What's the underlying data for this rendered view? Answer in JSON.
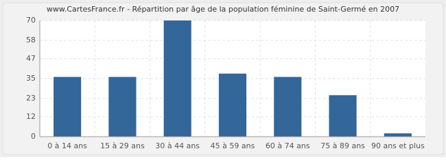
{
  "chart_data": {
    "type": "bar",
    "title": "www.CartesFrance.fr - Répartition par âge de la population féminine de Saint-Germé en 2007",
    "categories": [
      "0 à 14 ans",
      "15 à 29 ans",
      "30 à 44 ans",
      "45 à 59 ans",
      "60 à 74 ans",
      "75 à 89 ans",
      "90 ans et plus"
    ],
    "values": [
      36,
      36,
      70,
      38,
      36,
      25,
      2
    ],
    "color": "#336699",
    "ylim": [
      0,
      70
    ],
    "yticks": [
      0,
      12,
      23,
      35,
      47,
      58,
      70
    ],
    "grid": true
  }
}
